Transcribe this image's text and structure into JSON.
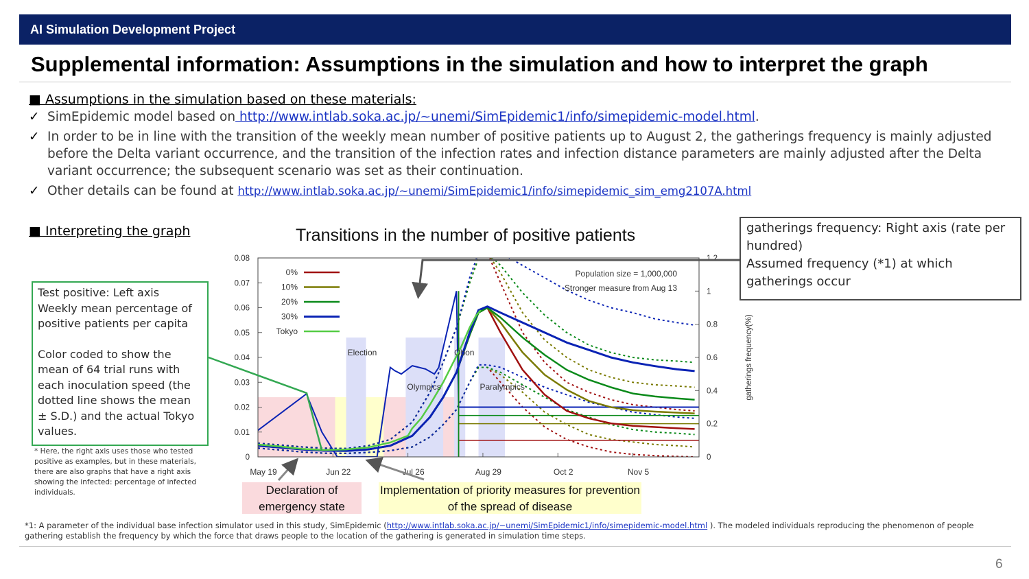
{
  "header": {
    "banner": "AI Simulation Development Project",
    "title": "Supplemental information: Assumptions in the simulation and how to interpret the graph"
  },
  "assumptions": {
    "heading": "■ Assumptions in the simulation based on these materials:",
    "check": "✓",
    "b1_text": "SimEpidemic model based on",
    "b1_link": " http://www.intlab.soka.ac.jp/~unemi/SimEpidemic1/info/simepidemic-model.html",
    "b1_end": ".",
    "b2_text": "In order to be in line with the transition of the weekly mean number of positive patients up to August 2, the gatherings frequency is mainly adjusted before the Delta variant occurrence, and the transition of the infection rates and infection distance parameters are mainly adjusted after the Delta variant occurrence; the subsequent scenario was set as their continuation.",
    "b3_text": "Other details can be found at",
    "b3_link": "http://www.intlab.soka.ac.jp/~unemi/SimEpidemic1/info/simepidemic_sim_emg2107A.html"
  },
  "interpreting": {
    "heading": "■ Interpreting the graph",
    "left_callout_1": "Test positive: Left axis",
    "left_callout_2": "Weekly mean percentage of positive patients per capita",
    "left_callout_3": "Color coded to show the mean of 64 trial runs with each inoculation speed (the dotted line shows the mean ± S.D.) and the actual Tokyo values.",
    "right_callout_1": "gatherings frequency: Right axis (rate per hundred)",
    "right_callout_2": "Assumed frequency (*1) at which gatherings occur",
    "note": "* Here, the right axis uses those who tested positive as examples, but in these materials, there are also graphs that have a right axis showing the infected: percentage of infected individuals.",
    "label_emergency": "Declaration of emergency state",
    "label_priority": "Implementation of priority measures for prevention of the spread of disease"
  },
  "footnote": {
    "text1": "*1: A parameter of the individual base infection simulator used in this study, SimEpidemic (",
    "link": "http://www.intlab.soka.ac.jp/~unemi/SimEpidemic1/info/simepidemic-model.html",
    "text2": " ). The modeled individuals reproducing the phenomenon of people gathering establish the frequency by which the force that draws people to the location of the gathering is generated in simulation time steps."
  },
  "page_number": "6",
  "colors": {
    "banner": "#0b2265",
    "s0": "#a01010",
    "s10": "#7a7a00",
    "s20": "#0a8a1a",
    "s30": "#0a23b4",
    "tokyo": "#55cc44",
    "emergency_band": "#fadadd",
    "priority_band": "#ffffcc",
    "event_band": "#dcdff8",
    "callout_green": "#33a852"
  },
  "chart_data": {
    "type": "line",
    "title": "Transitions in the number of positive patients",
    "y2label": "gatherings frequency(%)",
    "x_ticks": [
      "May 19",
      "Jun 22",
      "Jul 26",
      "Aug 29",
      "Oct 2",
      "Nov 5"
    ],
    "x_tick_days": [
      0,
      34,
      68,
      102,
      136,
      170
    ],
    "xlim": [
      0,
      200
    ],
    "ylim": [
      0,
      0.08
    ],
    "y_ticks": [
      "0",
      "0.01",
      "0.02",
      "0.03",
      "0.04",
      "0.05",
      "0.06",
      "0.07",
      "0.08"
    ],
    "y2lim": [
      0,
      1.2
    ],
    "y2_ticks": [
      "0",
      "0.2",
      "0.4",
      "0.6",
      "0.8",
      "1",
      "1.2"
    ],
    "annotations": [
      "Population size = 1,000,000",
      "Stronger measure from Aug 13"
    ],
    "legend": [
      "0%",
      "10%",
      "20%",
      "30%",
      "Tokyo"
    ],
    "bands": [
      {
        "kind": "emergency",
        "from": 0,
        "to": 90,
        "y2_top": 0.36
      },
      {
        "kind": "priority",
        "from": 35,
        "to": 57,
        "y2_top": 0.36
      },
      {
        "kind": "event",
        "label": "Election",
        "from": 40,
        "to": 49,
        "y2_top": 0.72
      },
      {
        "kind": "event",
        "label": "Olympics",
        "from": 67,
        "to": 84,
        "y2_top": 0.72
      },
      {
        "kind": "event",
        "label": "Obon",
        "from": 89,
        "to": 94,
        "y2_top": 0.72
      },
      {
        "kind": "event",
        "label": "Paralympics",
        "from": 100,
        "to": 112,
        "y2_top": 0.72
      }
    ],
    "gatherings": {
      "x": [
        0,
        22,
        29,
        36,
        36,
        37,
        44,
        44,
        45,
        54,
        60,
        60,
        62,
        65,
        70,
        76,
        80,
        82,
        83,
        90,
        90,
        91,
        92,
        200
      ],
      "y2": [
        0.16,
        0.38,
        0.15,
        0.0,
        0.0,
        0.0,
        0.0,
        0.0,
        0.0,
        0.0,
        0.54,
        0.54,
        0.52,
        0.5,
        0.55,
        0.53,
        0.5,
        0.54,
        0.6,
        1.0,
        1.0,
        0.3,
        0.3,
        0.3
      ]
    },
    "series": [
      {
        "name": "0%",
        "x": [
          0,
          10,
          20,
          30,
          40,
          50,
          60,
          70,
          78,
          84,
          90,
          96,
          100,
          104,
          110,
          120,
          130,
          140,
          150,
          160,
          170,
          180,
          190,
          198
        ],
        "y": [
          0.0045,
          0.0038,
          0.003,
          0.0025,
          0.0024,
          0.003,
          0.0045,
          0.0085,
          0.016,
          0.024,
          0.034,
          0.049,
          0.058,
          0.06,
          0.05,
          0.035,
          0.025,
          0.0185,
          0.0155,
          0.0135,
          0.0125,
          0.012,
          0.0115,
          0.0112
        ]
      },
      {
        "name": "10%",
        "x": [
          0,
          10,
          20,
          30,
          40,
          50,
          60,
          70,
          78,
          84,
          90,
          96,
          100,
          104,
          110,
          120,
          130,
          140,
          150,
          160,
          170,
          180,
          190,
          198
        ],
        "y": [
          0.0045,
          0.0038,
          0.003,
          0.0025,
          0.0024,
          0.003,
          0.0045,
          0.0085,
          0.016,
          0.024,
          0.034,
          0.049,
          0.058,
          0.06,
          0.054,
          0.042,
          0.033,
          0.027,
          0.0225,
          0.02,
          0.0188,
          0.0182,
          0.0178,
          0.0175
        ]
      },
      {
        "name": "20%",
        "x": [
          0,
          10,
          20,
          30,
          40,
          50,
          60,
          70,
          78,
          84,
          90,
          96,
          100,
          104,
          110,
          120,
          130,
          140,
          150,
          160,
          170,
          180,
          190,
          198
        ],
        "y": [
          0.0045,
          0.0038,
          0.003,
          0.0025,
          0.0024,
          0.003,
          0.0045,
          0.0085,
          0.016,
          0.024,
          0.034,
          0.049,
          0.058,
          0.06,
          0.056,
          0.048,
          0.041,
          0.035,
          0.031,
          0.028,
          0.0255,
          0.0243,
          0.0235,
          0.023
        ]
      },
      {
        "name": "30%",
        "x": [
          0,
          10,
          20,
          30,
          40,
          50,
          60,
          70,
          78,
          84,
          90,
          96,
          100,
          104,
          110,
          120,
          130,
          140,
          150,
          160,
          170,
          180,
          190,
          198
        ],
        "y": [
          0.0045,
          0.0038,
          0.003,
          0.0025,
          0.0024,
          0.003,
          0.0045,
          0.0085,
          0.016,
          0.024,
          0.034,
          0.05,
          0.059,
          0.0605,
          0.058,
          0.054,
          0.05,
          0.046,
          0.043,
          0.04,
          0.038,
          0.0365,
          0.0352,
          0.0345
        ]
      },
      {
        "name": "Tokyo",
        "x": [
          0,
          10,
          20,
          30,
          40,
          50,
          60,
          68,
          70,
          74,
          78,
          84,
          88,
          92,
          96,
          99,
          101
        ],
        "y": [
          0.005,
          0.0042,
          0.0032,
          0.0028,
          0.003,
          0.0038,
          0.0058,
          0.0085,
          0.0115,
          0.0155,
          0.021,
          0.03,
          0.037,
          0.044,
          0.052,
          0.057,
          0.059
        ]
      }
    ],
    "sd_bands": [
      {
        "name": "0% ±S.D.",
        "x": [
          0,
          10,
          20,
          30,
          40,
          50,
          60,
          70,
          78,
          84,
          90,
          96,
          100,
          104,
          110,
          120,
          130,
          140,
          150,
          160,
          170,
          180,
          190,
          198
        ],
        "upper": [
          0.0055,
          0.0048,
          0.004,
          0.0035,
          0.0034,
          0.0045,
          0.007,
          0.014,
          0.026,
          0.038,
          0.052,
          0.07,
          0.08,
          0.082,
          0.07,
          0.05,
          0.038,
          0.03,
          0.026,
          0.023,
          0.021,
          0.02,
          0.019,
          0.0185
        ],
        "lower": [
          0.0035,
          0.0028,
          0.002,
          0.0015,
          0.0014,
          0.0018,
          0.0025,
          0.004,
          0.008,
          0.013,
          0.019,
          0.03,
          0.036,
          0.036,
          0.03,
          0.02,
          0.012,
          0.007,
          0.004,
          0.002,
          0.001,
          0.0005,
          0.0002,
          0.0
        ]
      },
      {
        "name": "10% ±S.D.",
        "x": [
          0,
          10,
          20,
          30,
          40,
          50,
          60,
          70,
          78,
          84,
          90,
          96,
          100,
          104,
          110,
          120,
          130,
          140,
          150,
          160,
          170,
          180,
          190,
          198
        ],
        "upper": [
          0.0055,
          0.0048,
          0.004,
          0.0035,
          0.0034,
          0.0045,
          0.007,
          0.014,
          0.026,
          0.038,
          0.052,
          0.07,
          0.08,
          0.082,
          0.074,
          0.058,
          0.047,
          0.04,
          0.035,
          0.032,
          0.03,
          0.029,
          0.0285,
          0.028
        ],
        "lower": [
          0.0035,
          0.0028,
          0.002,
          0.0015,
          0.0014,
          0.0018,
          0.0025,
          0.004,
          0.008,
          0.013,
          0.019,
          0.03,
          0.036,
          0.036,
          0.033,
          0.026,
          0.018,
          0.013,
          0.009,
          0.007,
          0.006,
          0.005,
          0.0045,
          0.004
        ]
      },
      {
        "name": "20% ±S.D.",
        "x": [
          0,
          10,
          20,
          30,
          40,
          50,
          60,
          70,
          78,
          84,
          90,
          96,
          100,
          104,
          110,
          120,
          130,
          140,
          150,
          160,
          170,
          180,
          190,
          198
        ],
        "upper": [
          0.0055,
          0.0048,
          0.004,
          0.0035,
          0.0034,
          0.0045,
          0.007,
          0.014,
          0.026,
          0.038,
          0.052,
          0.07,
          0.08,
          0.082,
          0.077,
          0.066,
          0.057,
          0.05,
          0.045,
          0.042,
          0.04,
          0.039,
          0.0385,
          0.038
        ],
        "lower": [
          0.0035,
          0.0028,
          0.002,
          0.0015,
          0.0014,
          0.0018,
          0.0025,
          0.004,
          0.008,
          0.013,
          0.019,
          0.03,
          0.036,
          0.036,
          0.034,
          0.029,
          0.024,
          0.019,
          0.016,
          0.013,
          0.011,
          0.01,
          0.0095,
          0.009
        ]
      },
      {
        "name": "30% ±S.D.",
        "x": [
          0,
          10,
          20,
          30,
          40,
          50,
          60,
          70,
          78,
          84,
          90,
          96,
          100,
          104,
          110,
          120,
          130,
          140,
          150,
          160,
          170,
          180,
          190,
          198
        ],
        "upper": [
          0.0055,
          0.0048,
          0.004,
          0.0035,
          0.0034,
          0.0045,
          0.007,
          0.014,
          0.026,
          0.038,
          0.052,
          0.072,
          0.082,
          0.085,
          0.082,
          0.077,
          0.072,
          0.067,
          0.063,
          0.06,
          0.058,
          0.0555,
          0.054,
          0.053
        ],
        "lower": [
          0.0035,
          0.0028,
          0.002,
          0.0015,
          0.0014,
          0.0018,
          0.0025,
          0.004,
          0.008,
          0.013,
          0.019,
          0.03,
          0.037,
          0.037,
          0.036,
          0.032,
          0.028,
          0.025,
          0.022,
          0.02,
          0.018,
          0.017,
          0.016,
          0.0155
        ]
      }
    ]
  }
}
